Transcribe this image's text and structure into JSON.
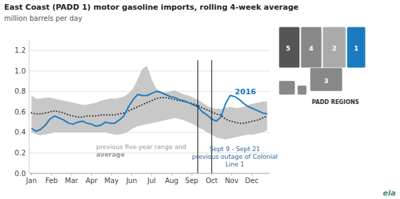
{
  "chart_data": {
    "type": "line",
    "title": "East Coast (PADD 1) motor gasoline imports, rolling 4-week average",
    "y_label": "million barrels per day",
    "x": [
      0,
      1,
      2,
      3,
      4,
      5,
      6,
      7,
      8,
      9,
      10,
      11,
      12,
      13,
      14,
      15,
      16,
      17,
      18,
      19,
      20,
      21,
      22,
      23,
      24,
      25,
      26,
      27,
      28,
      29,
      30,
      31,
      32,
      33,
      34,
      35,
      36,
      37,
      38,
      39,
      40,
      41,
      42,
      43,
      44,
      45,
      46,
      47,
      48,
      49,
      50,
      51
    ],
    "xlim": [
      -0.5,
      51.5
    ],
    "xticks": [
      {
        "value": 0,
        "label": "Jan"
      },
      {
        "value": 4.333333333333333,
        "label": "Feb"
      },
      {
        "value": 8.666666666666666,
        "label": "Mar"
      },
      {
        "value": 13,
        "label": "Apr"
      },
      {
        "value": 17.333333333333332,
        "label": "May"
      },
      {
        "value": 21.666666666666668,
        "label": "Jun"
      },
      {
        "value": 26,
        "label": "Jul"
      },
      {
        "value": 30.333333333333332,
        "label": "Aug"
      },
      {
        "value": 34.666666666666664,
        "label": "Sep"
      },
      {
        "value": 39,
        "label": "Oct"
      },
      {
        "value": 43.333333333333336,
        "label": "Nov"
      },
      {
        "value": 47.666666666666664,
        "label": "Dec"
      }
    ],
    "ylim": [
      0.0,
      1.3
    ],
    "yticks": [
      {
        "value": 0,
        "label": "0.0"
      },
      0.2,
      0.4,
      0.6,
      0.8,
      {
        "value": 1,
        "label": "1.0"
      },
      1.2
    ],
    "grid": true,
    "series": [
      {
        "name": "2016",
        "type": "line",
        "color": "#1a7abf",
        "line_style": "solid",
        "values": [
          0.44,
          0.41,
          0.43,
          0.47,
          0.53,
          0.56,
          0.54,
          0.52,
          0.49,
          0.48,
          0.5,
          0.51,
          0.49,
          0.48,
          0.46,
          0.47,
          0.5,
          0.49,
          0.49,
          0.52,
          0.56,
          0.65,
          0.72,
          0.77,
          0.76,
          0.76,
          0.78,
          0.8,
          0.79,
          0.77,
          0.75,
          0.74,
          0.72,
          0.71,
          0.69,
          0.67,
          0.65,
          0.6,
          0.57,
          0.53,
          0.51,
          0.55,
          0.68,
          0.76,
          0.75,
          0.72,
          0.68,
          0.65,
          0.63,
          0.61,
          0.59,
          0.58
        ]
      },
      {
        "type": "line",
        "color": "#222222",
        "line_style": "dotted",
        "values": [
          0.59,
          0.58,
          0.58,
          0.59,
          0.6,
          0.61,
          0.6,
          0.59,
          0.57,
          0.56,
          0.55,
          0.55,
          0.56,
          0.56,
          0.56,
          0.57,
          0.57,
          0.57,
          0.57,
          0.58,
          0.59,
          0.61,
          0.63,
          0.65,
          0.67,
          0.69,
          0.71,
          0.73,
          0.74,
          0.74,
          0.73,
          0.72,
          0.71,
          0.7,
          0.69,
          0.68,
          0.66,
          0.64,
          0.62,
          0.6,
          0.58,
          0.57,
          0.53,
          0.51,
          0.5,
          0.49,
          0.49,
          0.5,
          0.51,
          0.52,
          0.54,
          0.56
        ]
      },
      {
        "type": "area",
        "color": "#c8c8c8",
        "high": [
          0.76,
          0.73,
          0.73,
          0.74,
          0.74,
          0.73,
          0.72,
          0.71,
          0.7,
          0.69,
          0.68,
          0.67,
          0.67,
          0.68,
          0.69,
          0.71,
          0.72,
          0.73,
          0.73,
          0.74,
          0.75,
          0.78,
          0.83,
          0.92,
          1.02,
          1.05,
          0.92,
          0.83,
          0.8,
          0.79,
          0.8,
          0.81,
          0.79,
          0.77,
          0.76,
          0.74,
          0.72,
          0.69,
          0.66,
          0.64,
          0.63,
          0.63,
          0.64,
          0.65,
          0.64,
          0.64,
          0.65,
          0.67,
          0.68,
          0.69,
          0.7,
          0.7
        ],
        "low": [
          0.4,
          0.38,
          0.37,
          0.38,
          0.39,
          0.4,
          0.4,
          0.4,
          0.4,
          0.4,
          0.4,
          0.4,
          0.4,
          0.4,
          0.4,
          0.4,
          0.4,
          0.39,
          0.38,
          0.38,
          0.39,
          0.41,
          0.44,
          0.46,
          0.47,
          0.48,
          0.49,
          0.5,
          0.51,
          0.52,
          0.53,
          0.54,
          0.53,
          0.52,
          0.5,
          0.48,
          0.45,
          0.43,
          0.4,
          0.38,
          0.35,
          0.34,
          0.33,
          0.34,
          0.35,
          0.36,
          0.37,
          0.38,
          0.38,
          0.39,
          0.4,
          0.42
        ]
      }
    ],
    "vlines": [
      36,
      39
    ],
    "outage_note": [
      "Sept 9 - Sept 21",
      "previous outage of Colonial",
      "Line 1"
    ],
    "range_note": [
      "previous five-year range and",
      "average"
    ],
    "map_title": "PADD REGIONS",
    "map_regions": [
      "5",
      "4",
      "2",
      "1",
      "3"
    ],
    "source_logo": {
      "text": "eia",
      "color": "#4a8a6e"
    }
  }
}
